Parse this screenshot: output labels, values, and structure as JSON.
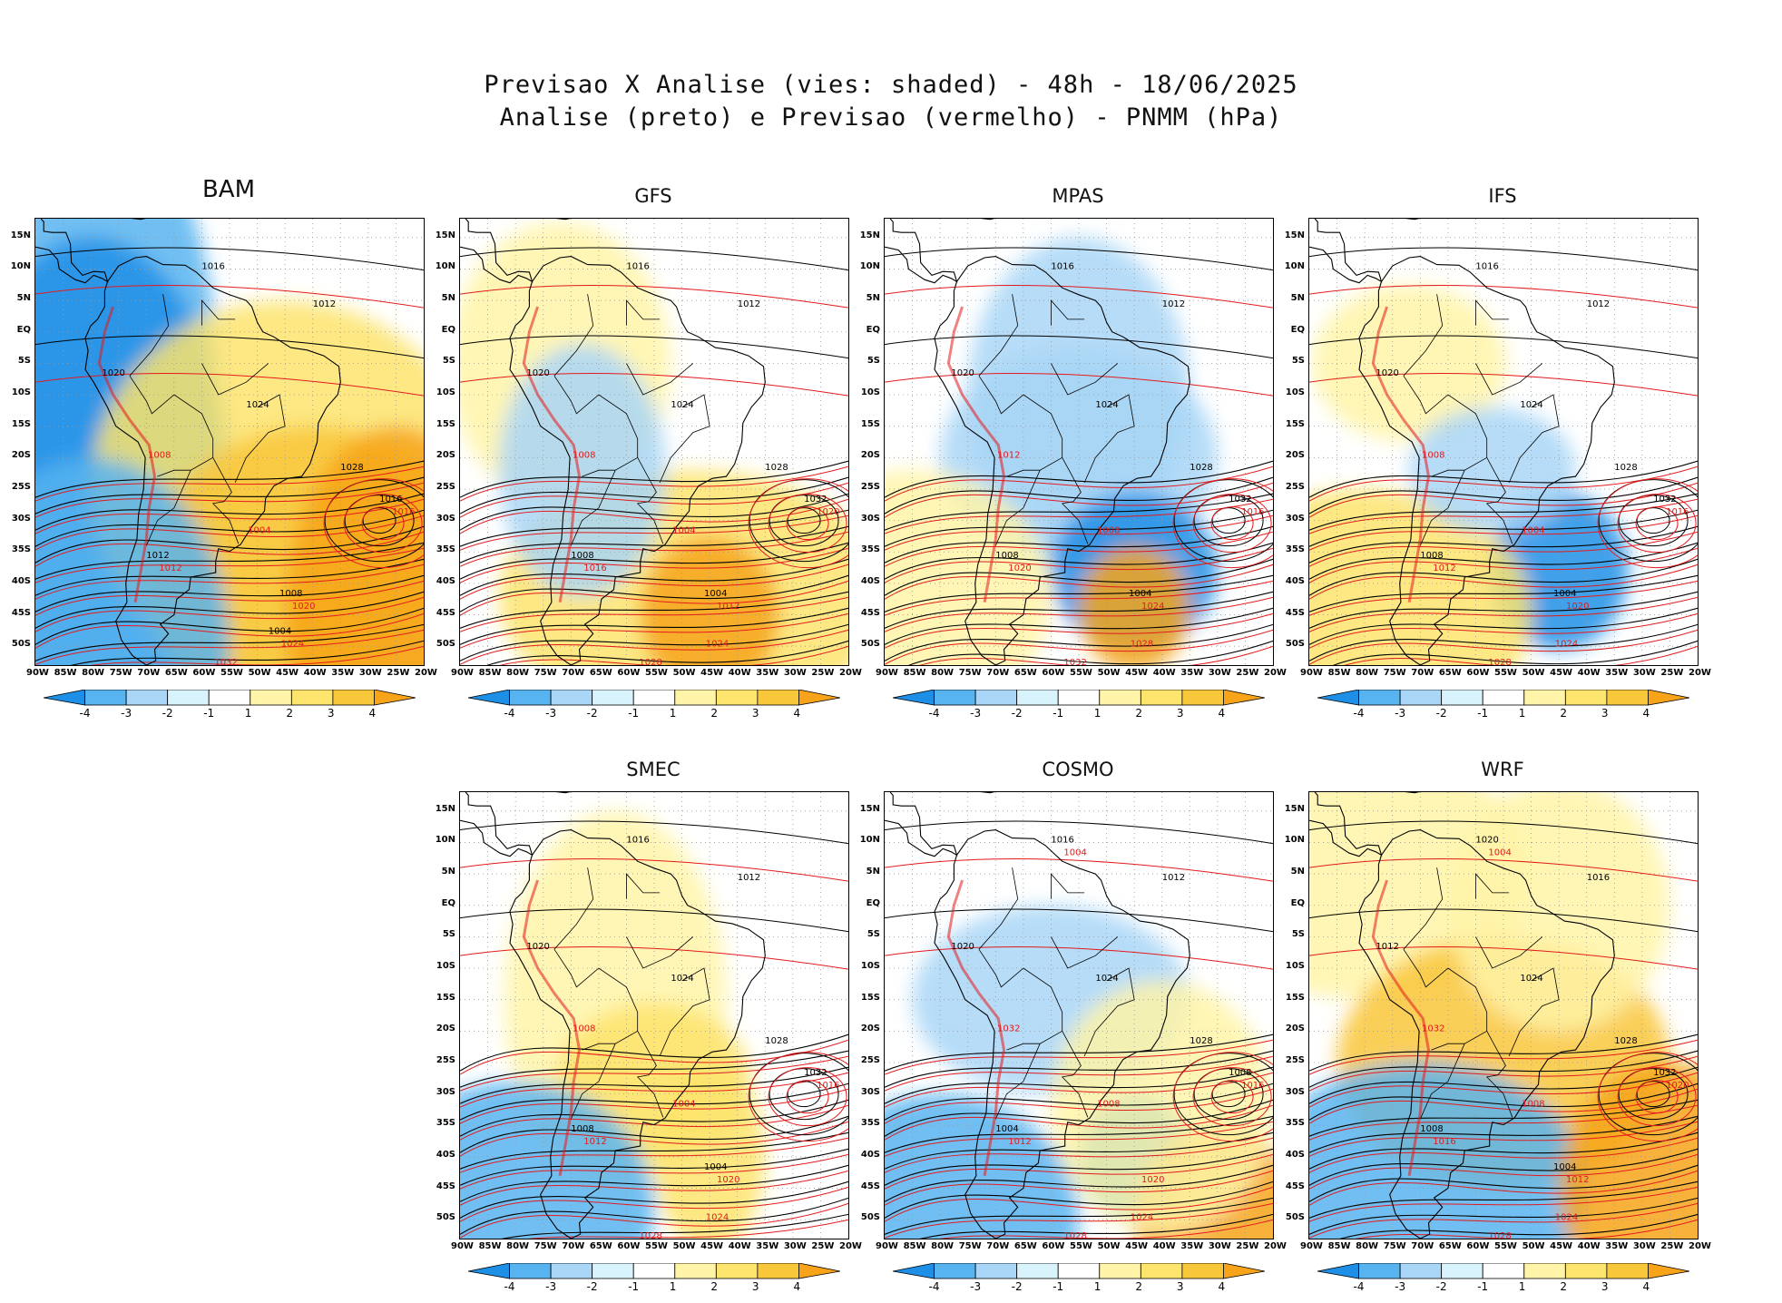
{
  "title_line1": "Previsao X Analise (vies: shaded) - 48h - 18/06/2025",
  "title_line2": "Analise (preto) e Previsao (vermelho) - PNMM (hPa)",
  "lat_labels": [
    "15N",
    "10N",
    "5N",
    "EQ",
    "5S",
    "10S",
    "15S",
    "20S",
    "25S",
    "30S",
    "35S",
    "40S",
    "45S",
    "50S"
  ],
  "lon_labels": [
    "90W",
    "85W",
    "80W",
    "75W",
    "70W",
    "65W",
    "60W",
    "55W",
    "50W",
    "45W",
    "40W",
    "35W",
    "30W",
    "25W",
    "20W"
  ],
  "colorbar": {
    "labels": [
      "-4",
      "-3",
      "-2",
      "-1",
      "1",
      "2",
      "3",
      "4"
    ],
    "colors": [
      "#1e8fe6",
      "#58b4f0",
      "#a9d6f7",
      "#d8f3fb",
      "#ffffff",
      "#fff4a8",
      "#fde46c",
      "#f9c73a",
      "#f7a41a"
    ]
  },
  "colors": {
    "analysis": "#000000",
    "forecast": "#e41a1c"
  },
  "panels": [
    {
      "name": "BAM",
      "analysis_labels": [
        "1016",
        "1012",
        "1020",
        "1024",
        "1028",
        "1016",
        "1012",
        "1008",
        "1004"
      ],
      "forecast_labels": [
        "1016",
        "1012",
        "1020",
        "1024",
        "1032",
        "1008",
        "1004"
      ]
    },
    {
      "name": "GFS",
      "analysis_labels": [
        "1016",
        "1012",
        "1020",
        "1024",
        "1028",
        "1032",
        "1008",
        "1004"
      ],
      "forecast_labels": [
        "1020",
        "1016",
        "1012",
        "1024",
        "1028",
        "1008",
        "1004"
      ]
    },
    {
      "name": "MPAS",
      "analysis_labels": [
        "1016",
        "1012",
        "1020",
        "1024",
        "1028",
        "1032",
        "1008",
        "1004"
      ],
      "forecast_labels": [
        "1016",
        "1020",
        "1024",
        "1028",
        "1032",
        "1012",
        "1008"
      ]
    },
    {
      "name": "IFS",
      "analysis_labels": [
        "1016",
        "1012",
        "1020",
        "1024",
        "1028",
        "1032",
        "1008",
        "1004"
      ],
      "forecast_labels": [
        "1016",
        "1012",
        "1020",
        "1024",
        "1028",
        "1008",
        "1004"
      ]
    },
    {
      "name": "SMEC",
      "analysis_labels": [
        "1016",
        "1012",
        "1020",
        "1024",
        "1028",
        "1032",
        "1008",
        "1004"
      ],
      "forecast_labels": [
        "1016",
        "1012",
        "1020",
        "1024",
        "1028",
        "1008",
        "1004"
      ]
    },
    {
      "name": "COSMO",
      "analysis_labels": [
        "1016",
        "1012",
        "1020",
        "1024",
        "1028",
        "1008",
        "1004"
      ],
      "forecast_labels": [
        "1016",
        "1012",
        "1020",
        "1024",
        "1028",
        "1032",
        "1008",
        "1004"
      ]
    },
    {
      "name": "WRF",
      "analysis_labels": [
        "1020",
        "1016",
        "1012",
        "1024",
        "1028",
        "1032",
        "1008",
        "1004"
      ],
      "forecast_labels": [
        "1020",
        "1016",
        "1012",
        "1024",
        "1028",
        "1032",
        "1008",
        "1004"
      ]
    }
  ]
}
